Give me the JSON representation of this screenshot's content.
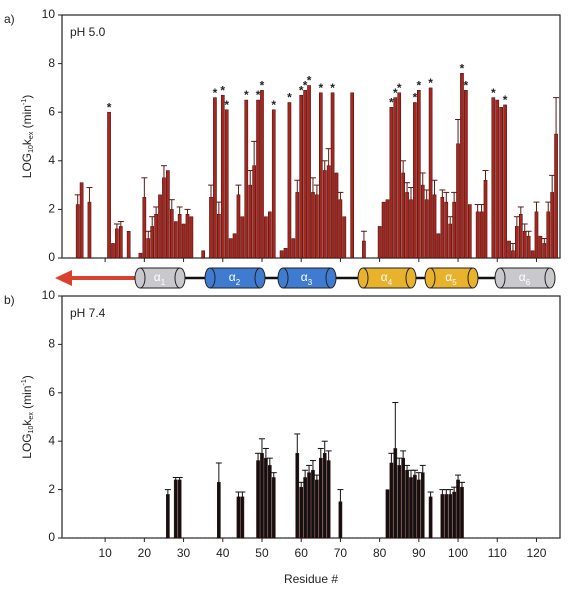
{
  "chart_data": [
    {
      "type": "bar",
      "panel_label": "a)",
      "title": "pH 5.0",
      "color": "#a8261e",
      "ylabel": [
        "LOG",
        "10",
        "k",
        "ex",
        " (min",
        "-1",
        ")"
      ],
      "xlim": [
        -1,
        126
      ],
      "xticks": [
        10,
        20,
        30,
        40,
        50,
        60,
        70,
        80,
        90,
        100,
        110,
        120
      ],
      "ylim": [
        0,
        10
      ],
      "yticks": [
        0,
        2,
        4,
        6,
        8,
        10
      ],
      "x": [
        3,
        4,
        6,
        11,
        12,
        13,
        14,
        16,
        19,
        20,
        21,
        22,
        23,
        24,
        25,
        26,
        27,
        28,
        29,
        30,
        31,
        32,
        35,
        37,
        38,
        39,
        40,
        41,
        42,
        43,
        44,
        45,
        46,
        47,
        48,
        49,
        50,
        51,
        52,
        53,
        55,
        56,
        57,
        58,
        59,
        60,
        61,
        62,
        63,
        64,
        65,
        66,
        67,
        68,
        69,
        70,
        71,
        73,
        76,
        80,
        81,
        82,
        83,
        84,
        85,
        86,
        87,
        88,
        89,
        90,
        91,
        92,
        93,
        94,
        95,
        96,
        97,
        98,
        99,
        100,
        101,
        102,
        103,
        105,
        106,
        107,
        109,
        110,
        111,
        112,
        113,
        114,
        115,
        116,
        117,
        118,
        119,
        120,
        121,
        122,
        123,
        124,
        125
      ],
      "values": [
        2.2,
        3.1,
        2.3,
        6.0,
        0.6,
        1.2,
        1.3,
        1.1,
        0.2,
        2.5,
        0.8,
        1.3,
        1.8,
        2.6,
        3.3,
        3.6,
        2.0,
        1.5,
        1.8,
        1.4,
        1.8,
        1.7,
        0.3,
        2.5,
        6.6,
        1.8,
        6.7,
        6.1,
        0.8,
        1.0,
        2.6,
        1.7,
        6.5,
        3.0,
        3.8,
        6.5,
        6.9,
        1.7,
        1.9,
        6.1,
        0.3,
        0.4,
        6.4,
        0.8,
        2.7,
        6.7,
        6.9,
        7.1,
        2.7,
        2.6,
        6.8,
        3.6,
        3.8,
        6.8,
        3.5,
        2.4,
        1.7,
        6.8,
        0.7,
        1.3,
        2.3,
        2.4,
        6.2,
        6.6,
        6.8,
        3.5,
        2.7,
        2.4,
        6.4,
        6.9,
        3.0,
        2.4,
        7.0,
        2.6,
        1.0,
        2.5,
        2.3,
        1.4,
        2.3,
        4.7,
        7.6,
        6.9,
        2.2,
        1.9,
        1.9,
        3.2,
        6.6,
        6.5,
        6.2,
        6.3,
        0.7,
        0.3,
        1.3,
        1.8,
        1.1,
        0.9,
        0.3,
        1.9,
        0.9,
        0.6,
        1.9,
        2.7,
        5.1
      ],
      "errors": [
        0.4,
        null,
        0.6,
        null,
        null,
        0.2,
        0.2,
        null,
        null,
        0.8,
        0.3,
        0.4,
        0.3,
        null,
        0.5,
        null,
        0.4,
        null,
        0.3,
        null,
        0.2,
        null,
        null,
        0.5,
        null,
        0.5,
        null,
        null,
        null,
        null,
        0.4,
        null,
        null,
        0.6,
        1.0,
        null,
        null,
        null,
        null,
        null,
        null,
        null,
        null,
        null,
        0.5,
        null,
        null,
        null,
        0.6,
        0.4,
        null,
        0.4,
        0.7,
        null,
        null,
        0.3,
        null,
        null,
        0.4,
        null,
        null,
        null,
        null,
        null,
        null,
        0.5,
        0.4,
        0.5,
        null,
        null,
        0.5,
        0.4,
        null,
        0.6,
        null,
        0.3,
        0.4,
        0.3,
        0.4,
        1.0,
        null,
        null,
        null,
        0.3,
        0.3,
        0.4,
        null,
        null,
        null,
        null,
        null,
        0.3,
        0.4,
        0.3,
        0.3,
        0.2,
        null,
        0.4,
        null,
        0.2,
        0.4,
        0.7,
        1.5
      ],
      "marks": [
        null,
        null,
        null,
        "*",
        null,
        null,
        null,
        null,
        null,
        null,
        null,
        null,
        null,
        null,
        null,
        null,
        null,
        null,
        null,
        null,
        null,
        null,
        null,
        null,
        "*",
        null,
        "*",
        "*",
        null,
        null,
        null,
        null,
        "*",
        null,
        null,
        "*",
        "*",
        null,
        null,
        "*",
        null,
        null,
        "*",
        null,
        null,
        "*",
        "*",
        "*",
        null,
        null,
        "*",
        null,
        null,
        "*",
        null,
        null,
        null,
        null,
        null,
        null,
        null,
        null,
        "*",
        "*",
        "*",
        null,
        null,
        null,
        "*",
        "*",
        null,
        null,
        "*",
        null,
        null,
        null,
        null,
        null,
        null,
        null,
        "*",
        "*",
        null,
        null,
        null,
        null,
        "*",
        null,
        null,
        "*",
        null,
        null,
        null,
        null,
        null,
        null,
        null,
        null,
        null,
        null,
        null,
        null,
        null
      ]
    },
    {
      "type": "bar",
      "panel_label": "b)",
      "title": "pH 7.4",
      "color": "#111111",
      "ylabel": [
        "LOG",
        "10",
        "k",
        "ex",
        " (min",
        "-1",
        ")"
      ],
      "xlabel": "Residue #",
      "xlim": [
        -1,
        126
      ],
      "xticks": [
        10,
        20,
        30,
        40,
        50,
        60,
        70,
        80,
        90,
        100,
        110,
        120
      ],
      "ylim": [
        0,
        10
      ],
      "yticks": [
        0,
        2,
        4,
        6,
        8,
        10
      ],
      "x": [
        26,
        28,
        29,
        39,
        44,
        45,
        49,
        50,
        51,
        52,
        53,
        59,
        60,
        61,
        62,
        63,
        64,
        65,
        66,
        67,
        70,
        82,
        83,
        84,
        85,
        86,
        87,
        88,
        89,
        90,
        91,
        93,
        96,
        97,
        98,
        99,
        100,
        101
      ],
      "values": [
        1.8,
        2.4,
        2.4,
        2.3,
        1.7,
        1.7,
        3.2,
        3.5,
        3.3,
        3.0,
        2.5,
        3.5,
        2.1,
        2.5,
        2.7,
        2.8,
        2.4,
        3.3,
        3.5,
        3.2,
        1.5,
        2.0,
        3.1,
        3.7,
        3.0,
        3.3,
        2.8,
        2.5,
        2.6,
        2.4,
        2.7,
        1.7,
        1.8,
        1.8,
        1.8,
        1.9,
        2.4,
        2.1
      ],
      "errors": [
        0.2,
        0.1,
        0.1,
        0.8,
        0.2,
        0.2,
        0.3,
        0.6,
        0.4,
        0.3,
        0.2,
        0.8,
        0.2,
        0.3,
        0.3,
        0.4,
        0.2,
        0.4,
        0.5,
        0.4,
        0.5,
        null,
        0.4,
        1.9,
        0.3,
        0.3,
        0.2,
        0.3,
        0.2,
        0.3,
        0.3,
        0.2,
        0.2,
        0.2,
        0.2,
        0.2,
        0.2,
        0.2
      ]
    }
  ],
  "helices": [
    {
      "label": "α",
      "sub": "1",
      "color": "#c9c9cd"
    },
    {
      "label": "α",
      "sub": "2",
      "color": "#3f7bd0"
    },
    {
      "label": "α",
      "sub": "3",
      "color": "#3f7bd0"
    },
    {
      "label": "α",
      "sub": "4",
      "color": "#e8b22c"
    },
    {
      "label": "α",
      "sub": "5",
      "color": "#e8b22c"
    },
    {
      "label": "α",
      "sub": "6",
      "color": "#c9c9cd"
    }
  ]
}
